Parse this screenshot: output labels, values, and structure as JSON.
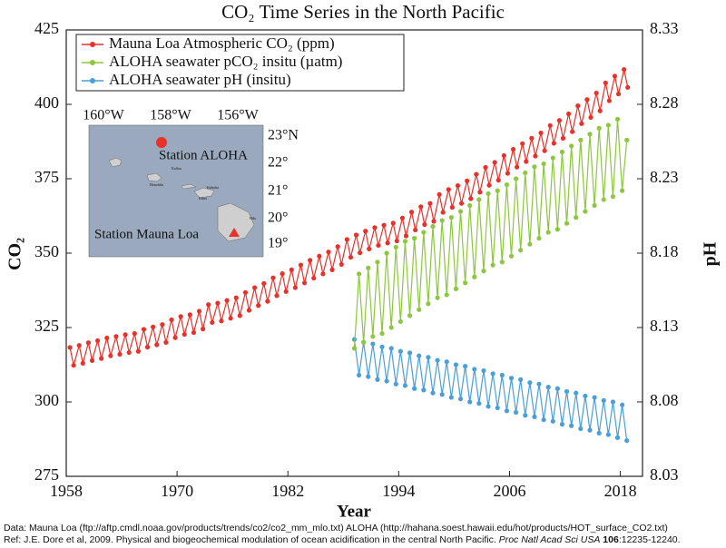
{
  "chart_data": {
    "type": "line",
    "title": "CO₂ Time Series in the North Pacific",
    "x_label": "Year",
    "y_label": "CO₂",
    "y2_label": "pH",
    "xlim": [
      1958,
      2020.4
    ],
    "xticks": [
      1958,
      1970,
      1982,
      1994,
      2006,
      2018
    ],
    "ylim": [
      275,
      425
    ],
    "yticks": [
      275,
      300,
      325,
      350,
      375,
      400,
      425
    ],
    "y2lim": [
      8.03,
      8.33
    ],
    "y2ticks": [
      8.03,
      8.08,
      8.13,
      8.18,
      8.23,
      8.28,
      8.33
    ],
    "legend": "upper left",
    "series": [
      {
        "name": "Mauna Loa Atmospheric CO₂ (ppm)",
        "color": "#e8312a",
        "x": [
          1958.4,
          1958.8,
          1959.4,
          1959.8,
          1960.4,
          1960.8,
          1961.4,
          1961.8,
          1962.4,
          1962.8,
          1963.4,
          1963.8,
          1964.4,
          1964.8,
          1965.4,
          1965.8,
          1966.4,
          1966.8,
          1967.4,
          1967.8,
          1968.4,
          1968.8,
          1969.4,
          1969.8,
          1970.4,
          1970.8,
          1971.4,
          1971.8,
          1972.4,
          1972.8,
          1973.4,
          1973.8,
          1974.4,
          1974.8,
          1975.4,
          1975.8,
          1976.4,
          1976.8,
          1977.4,
          1977.8,
          1978.4,
          1978.8,
          1979.4,
          1979.8,
          1980.4,
          1980.8,
          1981.4,
          1981.8,
          1982.4,
          1982.8,
          1983.4,
          1983.8,
          1984.4,
          1984.8,
          1985.4,
          1985.8,
          1986.4,
          1986.8,
          1987.4,
          1987.8,
          1988.4,
          1988.8,
          1989.4,
          1989.8,
          1990.4,
          1990.8,
          1991.4,
          1991.8,
          1992.4,
          1992.8,
          1993.4,
          1993.8,
          1994.4,
          1994.8,
          1995.4,
          1995.8,
          1996.4,
          1996.8,
          1997.4,
          1997.8,
          1998.4,
          1998.8,
          1999.4,
          1999.8,
          2000.4,
          2000.8,
          2001.4,
          2001.8,
          2002.4,
          2002.8,
          2003.4,
          2003.8,
          2004.4,
          2004.8,
          2005.4,
          2005.8,
          2006.4,
          2006.8,
          2007.4,
          2007.8,
          2008.4,
          2008.8,
          2009.4,
          2009.8,
          2010.4,
          2010.8,
          2011.4,
          2011.8,
          2012.4,
          2012.8,
          2013.4,
          2013.8,
          2014.4,
          2014.8,
          2015.4,
          2015.8,
          2016.4,
          2016.8,
          2017.4,
          2017.8,
          2018.4,
          2018.8
        ],
        "values": [
          318.3,
          312.3,
          319.0,
          313.0,
          319.9,
          313.9,
          320.6,
          314.6,
          321.5,
          315.5,
          322.0,
          316.0,
          322.6,
          316.6,
          323.0,
          317.0,
          324.4,
          318.4,
          325.2,
          319.2,
          326.0,
          320.0,
          327.6,
          321.6,
          328.7,
          322.7,
          329.3,
          323.3,
          330.5,
          324.5,
          332.7,
          326.7,
          333.2,
          327.2,
          334.1,
          328.1,
          335.0,
          329.0,
          336.8,
          330.8,
          338.4,
          332.4,
          339.8,
          333.8,
          341.7,
          335.7,
          343.1,
          337.1,
          344.4,
          338.4,
          346.0,
          340.0,
          347.6,
          341.6,
          349.0,
          343.0,
          350.4,
          344.4,
          352.2,
          346.2,
          354.6,
          348.6,
          356.1,
          350.1,
          357.4,
          351.4,
          358.6,
          352.6,
          359.4,
          353.4,
          360.1,
          354.1,
          361.8,
          355.8,
          363.8,
          357.8,
          365.6,
          359.6,
          366.7,
          360.7,
          369.7,
          363.7,
          371.4,
          365.4,
          372.7,
          366.7,
          374.3,
          368.3,
          376.5,
          370.5,
          378.8,
          372.8,
          380.5,
          374.5,
          382.8,
          376.8,
          384.9,
          378.9,
          386.8,
          380.8,
          388.6,
          382.6,
          390.4,
          384.4,
          392.9,
          386.9,
          394.6,
          388.6,
          396.8,
          390.8,
          399.5,
          393.5,
          401.6,
          395.6,
          403.8,
          397.8,
          407.2,
          401.2,
          409.5,
          403.5,
          411.7,
          405.7
        ]
      },
      {
        "name": "ALOHA seawater pCO₂ insitu (µatm)",
        "color": "#8dc63f",
        "x": [
          1989.2,
          1989.7,
          1990.2,
          1990.7,
          1991.2,
          1991.7,
          1992.2,
          1992.7,
          1993.2,
          1993.7,
          1994.2,
          1994.7,
          1995.2,
          1995.7,
          1996.2,
          1996.7,
          1997.2,
          1997.7,
          1998.2,
          1998.7,
          1999.2,
          1999.7,
          2000.2,
          2000.7,
          2001.2,
          2001.7,
          2002.2,
          2002.7,
          2003.2,
          2003.7,
          2004.2,
          2004.7,
          2005.2,
          2005.7,
          2006.2,
          2006.7,
          2007.2,
          2007.7,
          2008.2,
          2008.7,
          2009.2,
          2009.7,
          2010.2,
          2010.7,
          2011.2,
          2011.7,
          2012.2,
          2012.7,
          2013.2,
          2013.7,
          2014.2,
          2014.7,
          2015.2,
          2015.7,
          2016.2,
          2016.7,
          2017.2,
          2017.7,
          2018.2,
          2018.7
        ],
        "values": [
          318,
          343,
          320,
          345,
          322,
          347,
          323,
          350,
          325,
          352,
          327,
          354,
          329,
          355,
          331,
          357,
          333,
          359,
          335,
          361,
          336,
          362,
          338,
          364,
          340,
          366,
          342,
          368,
          344,
          370,
          346,
          371,
          347,
          373,
          349,
          375,
          351,
          377,
          353,
          379,
          355,
          380,
          357,
          382,
          358,
          384,
          360,
          386,
          362,
          388,
          364,
          390,
          366,
          392,
          368,
          393,
          369,
          395,
          371,
          388
        ]
      },
      {
        "name": "ALOHA seawater pH (insitu)",
        "color": "#4a9fd8",
        "axis": "y2",
        "x": [
          1989.2,
          1989.7,
          1990.2,
          1990.7,
          1991.2,
          1991.7,
          1992.2,
          1992.7,
          1993.2,
          1993.7,
          1994.2,
          1994.7,
          1995.2,
          1995.7,
          1996.2,
          1996.7,
          1997.2,
          1997.7,
          1998.2,
          1998.7,
          1999.2,
          1999.7,
          2000.2,
          2000.7,
          2001.2,
          2001.7,
          2002.2,
          2002.7,
          2003.2,
          2003.7,
          2004.2,
          2004.7,
          2005.2,
          2005.7,
          2006.2,
          2006.7,
          2007.2,
          2007.7,
          2008.2,
          2008.7,
          2009.2,
          2009.7,
          2010.2,
          2010.7,
          2011.2,
          2011.7,
          2012.2,
          2012.7,
          2013.2,
          2013.7,
          2014.2,
          2014.7,
          2015.2,
          2015.7,
          2016.2,
          2016.7,
          2017.2,
          2017.7,
          2018.2,
          2018.7
        ],
        "values": [
          8.122,
          8.098,
          8.12,
          8.097,
          8.119,
          8.095,
          8.117,
          8.094,
          8.116,
          8.092,
          8.114,
          8.091,
          8.113,
          8.089,
          8.111,
          8.088,
          8.11,
          8.086,
          8.108,
          8.085,
          8.107,
          8.083,
          8.105,
          8.082,
          8.104,
          8.08,
          8.102,
          8.079,
          8.101,
          8.077,
          8.099,
          8.076,
          8.098,
          8.074,
          8.096,
          8.073,
          8.095,
          8.071,
          8.093,
          8.07,
          8.092,
          8.068,
          8.09,
          8.067,
          8.089,
          8.065,
          8.087,
          8.064,
          8.086,
          8.062,
          8.084,
          8.061,
          8.083,
          8.059,
          8.081,
          8.058,
          8.08,
          8.056,
          8.078,
          8.054
        ]
      }
    ]
  },
  "inset": {
    "lon_labels": [
      "160°W",
      "158°W",
      "156°W"
    ],
    "lat_labels": [
      "23°N",
      "22°",
      "21°",
      "20°",
      "19°"
    ],
    "station_aloha": "Station ALOHA",
    "station_mauna_loa": "Station Mauna Loa",
    "places": [
      "Kailua",
      "Honolulu",
      "Kahului",
      "Kihei",
      "Hilo"
    ]
  },
  "footer": {
    "data_line": "Data: Mauna Loa (ftp://aftp.cmdl.noaa.gov/products/trends/co2/co2_mm_mlo.txt)  ALOHA (http://hahana.soest.hawaii.edu/hot/products/HOT_surface_CO2.txt)",
    "ref_text": "Ref: J.E. Dore et al, 2009. Physical and biogeochemical modulation of ocean acidification in the central North Pacific.",
    "ref_journal": "Proc Natl Acad Sci USA",
    "ref_volume": "106",
    "ref_pages": ":12235-12240."
  }
}
